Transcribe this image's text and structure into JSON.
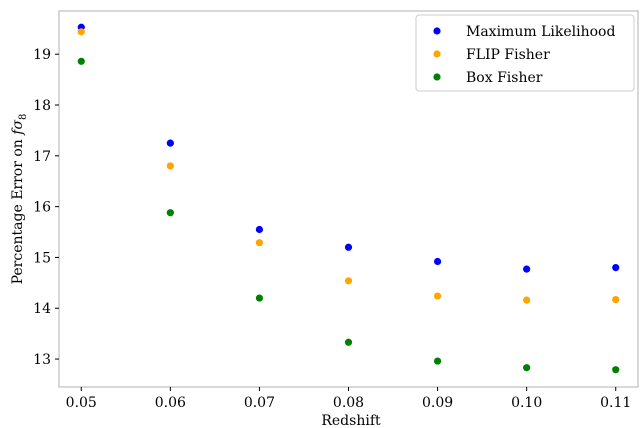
{
  "chart_data": {
    "type": "scatter",
    "xlabel": "Redshift",
    "ylabel": "Percentage Error on fσ8",
    "x": [
      0.05,
      0.06,
      0.07,
      0.08,
      0.09,
      0.1,
      0.11
    ],
    "x_ticks": [
      "0.05",
      "0.06",
      "0.07",
      "0.08",
      "0.09",
      "0.10",
      "0.11"
    ],
    "y_ticks": [
      13,
      14,
      15,
      16,
      17,
      18,
      19
    ],
    "xlim": [
      0.0475,
      0.1125
    ],
    "ylim": [
      12.45,
      19.85
    ],
    "legend_position": "top-right",
    "grid": false,
    "series": [
      {
        "name": "Maximum Likelihood",
        "color": "#0000ff",
        "values": [
          19.53,
          17.25,
          15.55,
          15.2,
          14.92,
          14.77,
          14.8
        ]
      },
      {
        "name": "FLIP Fisher",
        "color": "#ffa500",
        "values": [
          19.44,
          16.8,
          15.29,
          14.54,
          14.24,
          14.16,
          14.17
        ]
      },
      {
        "name": "Box Fisher",
        "color": "#008000",
        "values": [
          18.86,
          15.88,
          14.2,
          13.33,
          12.96,
          12.83,
          12.79
        ]
      }
    ]
  }
}
